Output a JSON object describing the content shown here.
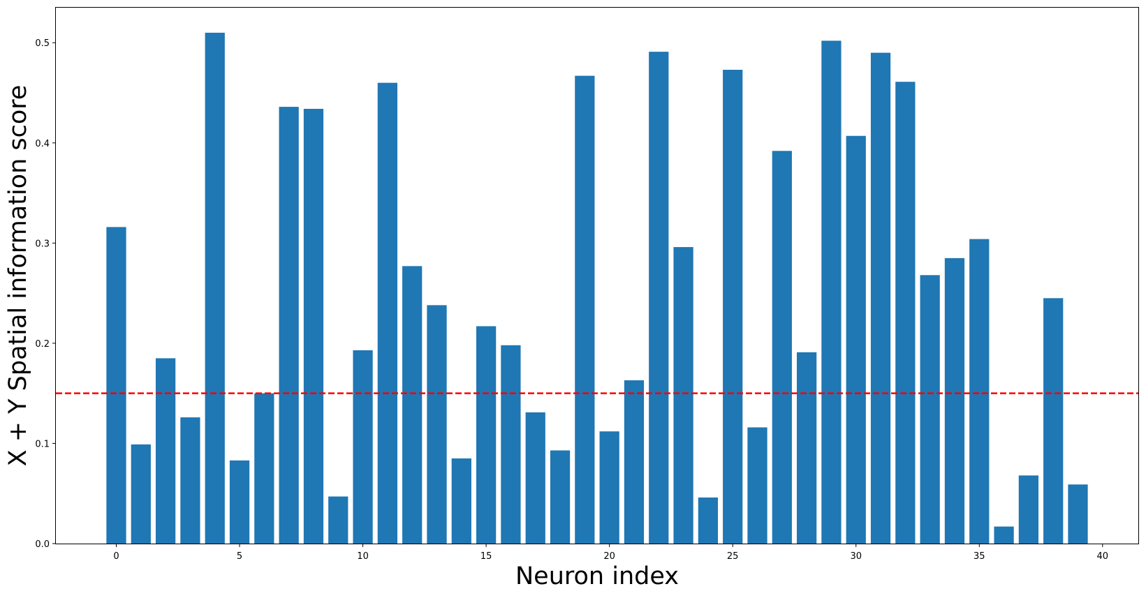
{
  "chart_data": {
    "type": "bar",
    "title": "",
    "xlabel": "Neuron index",
    "ylabel": "X + Y Spatial information score",
    "categories": [
      0,
      1,
      2,
      3,
      4,
      5,
      6,
      7,
      8,
      9,
      10,
      11,
      12,
      13,
      14,
      15,
      16,
      17,
      18,
      19,
      20,
      21,
      22,
      23,
      24,
      25,
      26,
      27,
      28,
      29,
      30,
      31,
      32,
      33,
      34,
      35,
      36,
      37,
      38,
      39
    ],
    "values": [
      0.316,
      0.099,
      0.185,
      0.126,
      0.51,
      0.083,
      0.15,
      0.436,
      0.434,
      0.047,
      0.193,
      0.46,
      0.277,
      0.238,
      0.085,
      0.217,
      0.198,
      0.131,
      0.093,
      0.467,
      0.112,
      0.163,
      0.491,
      0.296,
      0.046,
      0.473,
      0.116,
      0.392,
      0.191,
      0.502,
      0.407,
      0.49,
      0.461,
      0.268,
      0.285,
      0.304,
      0.017,
      0.068,
      0.245,
      0.059
    ],
    "xlim": [
      -2.45,
      41.45
    ],
    "ylim": [
      0,
      0.535
    ],
    "xticks": [
      0,
      5,
      10,
      15,
      20,
      25,
      30,
      35,
      40
    ],
    "yticks": [
      0.0,
      0.1,
      0.2,
      0.3,
      0.4,
      0.5
    ],
    "ytick_labels": [
      "0.0",
      "0.1",
      "0.2",
      "0.3",
      "0.4",
      "0.5"
    ],
    "threshold": {
      "value": 0.15,
      "style": "dashed",
      "color": "#ff0000"
    },
    "bar_color": "#1f77b4",
    "grid": false,
    "legend": false
  }
}
